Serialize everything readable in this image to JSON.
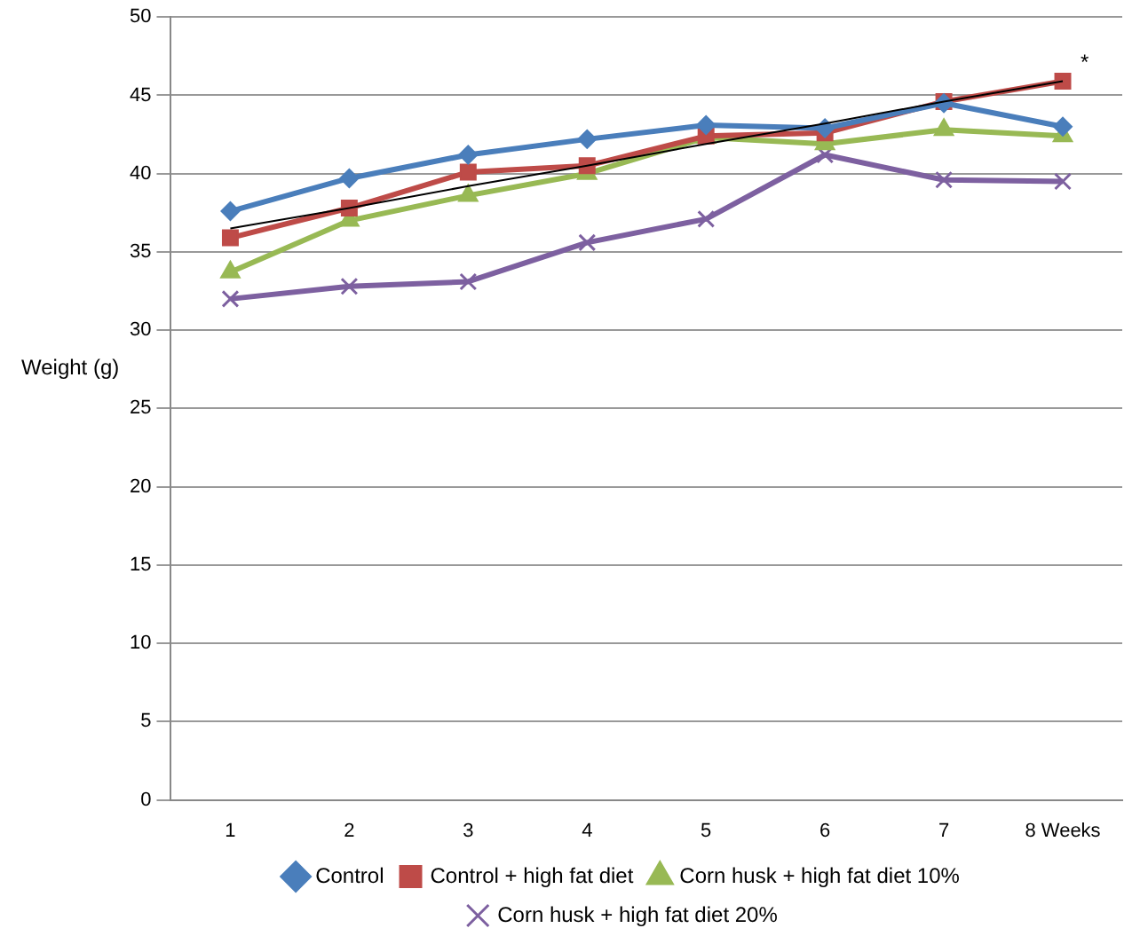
{
  "chart_data": {
    "type": "line",
    "ylabel": "Weight (g)",
    "categories": [
      "1",
      "2",
      "3",
      "4",
      "5",
      "6",
      "7",
      "8 Weeks"
    ],
    "ylim": [
      0,
      50
    ],
    "yticks": [
      0,
      5,
      10,
      15,
      20,
      25,
      30,
      35,
      40,
      45,
      50
    ],
    "grid": "y",
    "legend": "bottom",
    "series": [
      {
        "name": "Control",
        "color": "#4a7ebb",
        "marker": "diamond",
        "values": [
          37.6,
          39.7,
          41.2,
          42.2,
          43.1,
          42.9,
          44.5,
          43.0
        ]
      },
      {
        "name": "Control + high fat diet",
        "color": "#be4b48",
        "marker": "square",
        "values": [
          35.9,
          37.8,
          40.1,
          40.5,
          42.4,
          42.6,
          44.6,
          45.9
        ]
      },
      {
        "name": "Corn husk + high fat diet 10%",
        "color": "#98b954",
        "marker": "triangle",
        "values": [
          33.7,
          37.0,
          38.6,
          40.0,
          42.3,
          41.9,
          42.8,
          42.4
        ]
      },
      {
        "name": "Corn husk + high fat diet 20%",
        "color": "#7d60a0",
        "marker": "cross",
        "values": [
          32.0,
          32.8,
          33.1,
          35.6,
          37.1,
          41.2,
          39.6,
          39.5
        ]
      },
      {
        "color": "#000000",
        "marker": "none",
        "values": [
          36.5,
          37.8,
          39.2,
          40.5,
          41.9,
          43.2,
          44.6,
          45.9
        ]
      }
    ],
    "annotations": [
      {
        "text": "*",
        "x": "8 Weeks",
        "y": 45.9
      }
    ]
  }
}
